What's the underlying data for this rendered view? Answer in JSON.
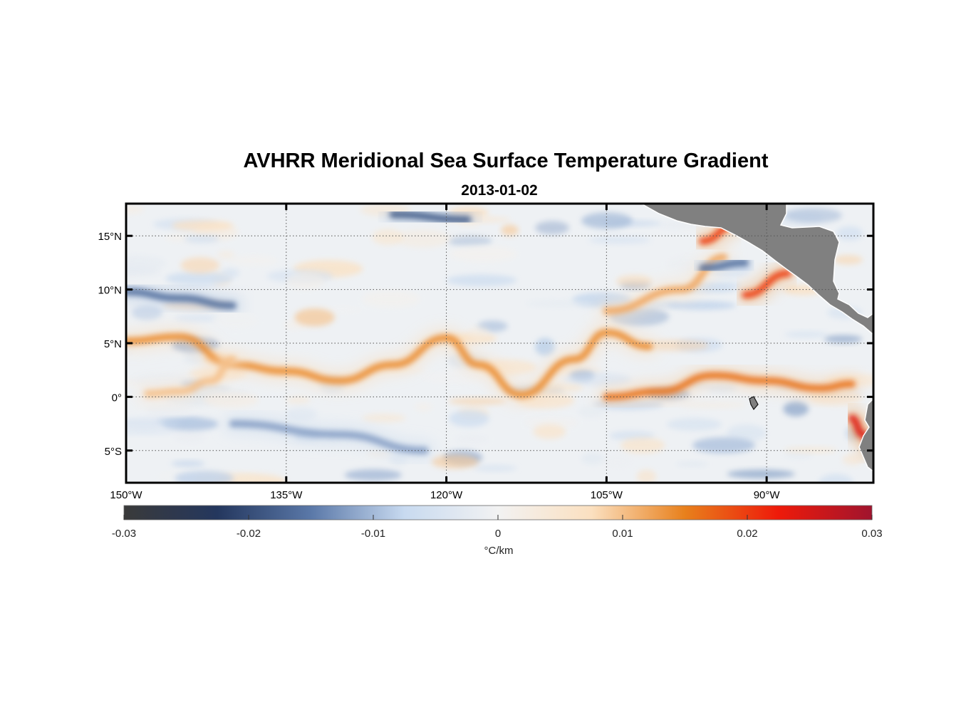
{
  "chart_data": {
    "type": "heatmap",
    "title": "AVHRR Meridional Sea Surface Temperature Gradient",
    "subtitle": "2013-01-02",
    "x_axis": {
      "range": [
        -150,
        -80
      ],
      "ticks": [
        {
          "value": -150,
          "label": "150°W"
        },
        {
          "value": -135,
          "label": "135°W"
        },
        {
          "value": -120,
          "label": "120°W"
        },
        {
          "value": -105,
          "label": "105°W"
        },
        {
          "value": -90,
          "label": "90°W"
        }
      ]
    },
    "y_axis": {
      "range": [
        -8,
        18
      ],
      "ticks": [
        {
          "value": 15,
          "label": "15°N"
        },
        {
          "value": 10,
          "label": "10°N"
        },
        {
          "value": 5,
          "label": "5°N"
        },
        {
          "value": 0,
          "label": "0°"
        },
        {
          "value": -5,
          "label": "5°S"
        }
      ]
    },
    "grid": true,
    "colorbar": {
      "range": [
        -0.03,
        0.03
      ],
      "ticks": [
        {
          "value": -0.03,
          "label": "-0.03"
        },
        {
          "value": -0.02,
          "label": "-0.02"
        },
        {
          "value": -0.01,
          "label": "-0.01"
        },
        {
          "value": 0,
          "label": "0"
        },
        {
          "value": 0.01,
          "label": "0.01"
        },
        {
          "value": 0.02,
          "label": "0.02"
        },
        {
          "value": 0.03,
          "label": "0.03"
        }
      ],
      "unit_label": "°C/km",
      "colors": [
        "#3a3a3a",
        "#24375e",
        "#5a78a8",
        "#c8daf0",
        "#f2f2f2",
        "#fbe0c0",
        "#e8801c",
        "#ee1a0a",
        "#a0142e"
      ]
    },
    "land_color": "#808080",
    "features": [
      {
        "kind": "positive-front",
        "lon": [
          -150,
          -145,
          -140,
          -135,
          -130,
          -125,
          -120,
          -117,
          -113,
          -108,
          -105,
          -101
        ],
        "lat": [
          5.2,
          5.6,
          3.0,
          2.4,
          1.5,
          3.0,
          5.5,
          3.0,
          0.2,
          3.5,
          6.0,
          4.7
        ],
        "strength": 0.014
      },
      {
        "kind": "positive-front",
        "lon": [
          -148,
          -145,
          -142,
          -140
        ],
        "lat": [
          0.3,
          0.5,
          1.5,
          3.5
        ],
        "strength": 0.01
      },
      {
        "kind": "positive-front",
        "lon": [
          -105,
          -100,
          -95,
          -90,
          -85,
          -82
        ],
        "lat": [
          0.0,
          0.5,
          2.0,
          1.5,
          0.8,
          1.2
        ],
        "strength": 0.016
      },
      {
        "kind": "positive-front",
        "lon": [
          -82,
          -81,
          -80
        ],
        "lat": [
          -2.0,
          -3.5,
          -4.8
        ],
        "strength": 0.024
      },
      {
        "kind": "positive-front",
        "lon": [
          -96,
          -93
        ],
        "lat": [
          14.5,
          16.0
        ],
        "strength": 0.02
      },
      {
        "kind": "positive-front",
        "lon": [
          -92,
          -88
        ],
        "lat": [
          9.5,
          11.5
        ],
        "strength": 0.02
      },
      {
        "kind": "positive-front",
        "lon": [
          -105,
          -98,
          -94
        ],
        "lat": [
          8.0,
          10.0,
          13.0
        ],
        "strength": 0.012
      },
      {
        "kind": "negative-front",
        "lon": [
          -150,
          -145,
          -140
        ],
        "lat": [
          9.8,
          9.2,
          8.5
        ],
        "strength": -0.016
      },
      {
        "kind": "negative-front",
        "lon": [
          -125,
          -118
        ],
        "lat": [
          17.0,
          16.5
        ],
        "strength": -0.018
      },
      {
        "kind": "negative-front",
        "lon": [
          -140,
          -130,
          -122
        ],
        "lat": [
          -2.5,
          -3.5,
          -5.0
        ],
        "strength": -0.012
      },
      {
        "kind": "negative-front",
        "lon": [
          -96,
          -92
        ],
        "lat": [
          12.0,
          12.5
        ],
        "strength": -0.016
      }
    ]
  }
}
